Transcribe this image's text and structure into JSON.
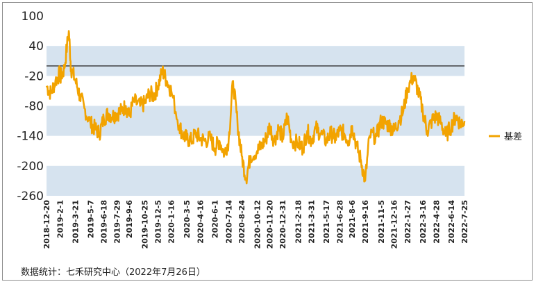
{
  "chart_data": {
    "type": "line",
    "title": "",
    "xlabel": "",
    "ylabel": "",
    "ylim": [
      -260,
      100
    ],
    "yticks": [
      100,
      40,
      -20,
      -80,
      -140,
      -200,
      -260
    ],
    "band_color": "#d6e3ef",
    "reference_line_y": 0,
    "legend_position": "right",
    "series": [
      {
        "name": "基差",
        "color": "#f2a300",
        "x": [
          "2018-12-20",
          "2019-1-3",
          "2019-1-17",
          "2019-1-31",
          "2019-2-1",
          "2019-2-14",
          "2019-2-28",
          "2019-3-7",
          "2019-3-21",
          "2019-4-4",
          "2019-4-18",
          "2019-5-7",
          "2019-5-21",
          "2019-6-4",
          "2019-6-18",
          "2019-7-2",
          "2019-7-16",
          "2019-7-29",
          "2019-8-12",
          "2019-8-26",
          "2019-9-6",
          "2019-9-20",
          "2019-10-10",
          "2019-10-25",
          "2019-11-8",
          "2019-11-22",
          "2019-12-5",
          "2019-12-19",
          "2020-1-2",
          "2020-1-16",
          "2020-2-10",
          "2020-2-24",
          "2020-3-5",
          "2020-3-19",
          "2020-4-2",
          "2020-4-16",
          "2020-4-30",
          "2020-5-18",
          "2020-6-1",
          "2020-6-15",
          "2020-7-1",
          "2020-7-14",
          "2020-7-28",
          "2020-8-11",
          "2020-8-24",
          "2020-9-7",
          "2020-9-21",
          "2020-10-12",
          "2020-10-26",
          "2020-11-9",
          "2020-11-20",
          "2020-12-4",
          "2020-12-18",
          "2020-12-31",
          "2021-1-14",
          "2021-1-28",
          "2021-2-18",
          "2021-3-4",
          "2021-3-18",
          "2021-3-31",
          "2021-4-14",
          "2021-4-28",
          "2021-5-17",
          "2021-5-31",
          "2021-6-15",
          "2021-6-28",
          "2021-7-12",
          "2021-7-26",
          "2021-8-6",
          "2021-8-20",
          "2021-9-3",
          "2021-9-16",
          "2021-9-30",
          "2021-10-22",
          "2021-11-5",
          "2021-11-19",
          "2021-12-3",
          "2021-12-16",
          "2021-12-30",
          "2022-1-14",
          "2022-1-27",
          "2022-2-15",
          "2022-3-1",
          "2022-3-16",
          "2022-3-30",
          "2022-4-14",
          "2022-4-28",
          "2022-5-13",
          "2022-5-27",
          "2022-6-14",
          "2022-6-28",
          "2022-7-12",
          "2022-7-25"
        ],
        "values": [
          -40,
          -55,
          -30,
          -15,
          -25,
          -5,
          70,
          -5,
          -30,
          -60,
          -85,
          -115,
          -125,
          -135,
          -105,
          -95,
          -100,
          -95,
          -90,
          -80,
          -100,
          -70,
          -80,
          -75,
          -55,
          -60,
          -40,
          -10,
          -30,
          -50,
          -120,
          -140,
          -145,
          -150,
          -135,
          -145,
          -150,
          -145,
          -165,
          -150,
          -175,
          -150,
          -30,
          -115,
          -180,
          -225,
          -180,
          -170,
          -160,
          -145,
          -120,
          -150,
          -125,
          -145,
          -100,
          -150,
          -155,
          -165,
          -130,
          -150,
          -125,
          -135,
          -150,
          -135,
          -145,
          -130,
          -135,
          -150,
          -120,
          -160,
          -190,
          -230,
          -140,
          -140,
          -110,
          -115,
          -120,
          -130,
          -110,
          -90,
          -45,
          -20,
          -50,
          -90,
          -130,
          -110,
          -100,
          -115,
          -140,
          -120,
          -100,
          -115,
          -110
        ]
      }
    ]
  },
  "xticks": [
    "2018-12-20",
    "2019-2-1",
    "2019-3-21",
    "2019-5-7",
    "2019-6-18",
    "2019-7-29",
    "2019-9-6",
    "2019-10-25",
    "2019-12-5",
    "2020-1-16",
    "2020-3-5",
    "2020-4-16",
    "2020-6-1",
    "2020-7-14",
    "2020-8-24",
    "2020-10-12",
    "2020-11-20",
    "2020-12-31",
    "2021-2-18",
    "2021-3-31",
    "2021-5-17",
    "2021-6-28",
    "2021-8-6",
    "2021-9-16",
    "2021-11-5",
    "2021-12-16",
    "2022-1-27",
    "2022-3-16",
    "2022-4-28",
    "2022-6-14",
    "2022-7-25"
  ],
  "source_note": "数据统计：七禾研究中心（2022年7月26日）"
}
